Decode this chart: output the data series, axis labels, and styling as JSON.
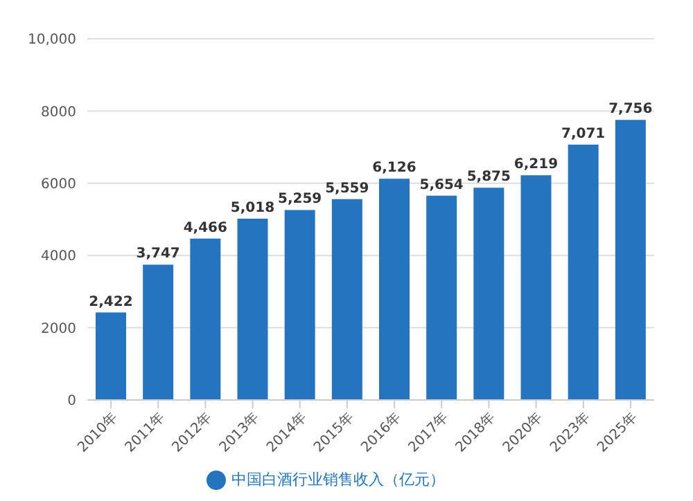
{
  "chart_data": {
    "type": "bar",
    "categories": [
      "2010年",
      "2011年",
      "2012年",
      "2013年",
      "2014年",
      "2015年",
      "2016年",
      "2017年",
      "2018年",
      "2020年",
      "2023年",
      "2025年"
    ],
    "series": [
      {
        "name": "中国白酒行业销售收入（亿元）",
        "color": "#2474c0",
        "values": [
          2422,
          3747,
          4466,
          5018,
          5259,
          5559,
          6126,
          5654,
          5875,
          6219,
          7071,
          7756
        ],
        "value_labels": [
          "2,422",
          "3,747",
          "4,466",
          "5,018",
          "5,259",
          "5,559",
          "6,126",
          "5,654",
          "5,875",
          "6,219",
          "7,071",
          "7,756"
        ]
      }
    ],
    "ylim": [
      0,
      10000
    ],
    "yticks": [
      0,
      2000,
      4000,
      6000,
      8000,
      {
        "value": 10000,
        "label": "10,000"
      }
    ],
    "grid": "y",
    "legend": "bottom"
  }
}
